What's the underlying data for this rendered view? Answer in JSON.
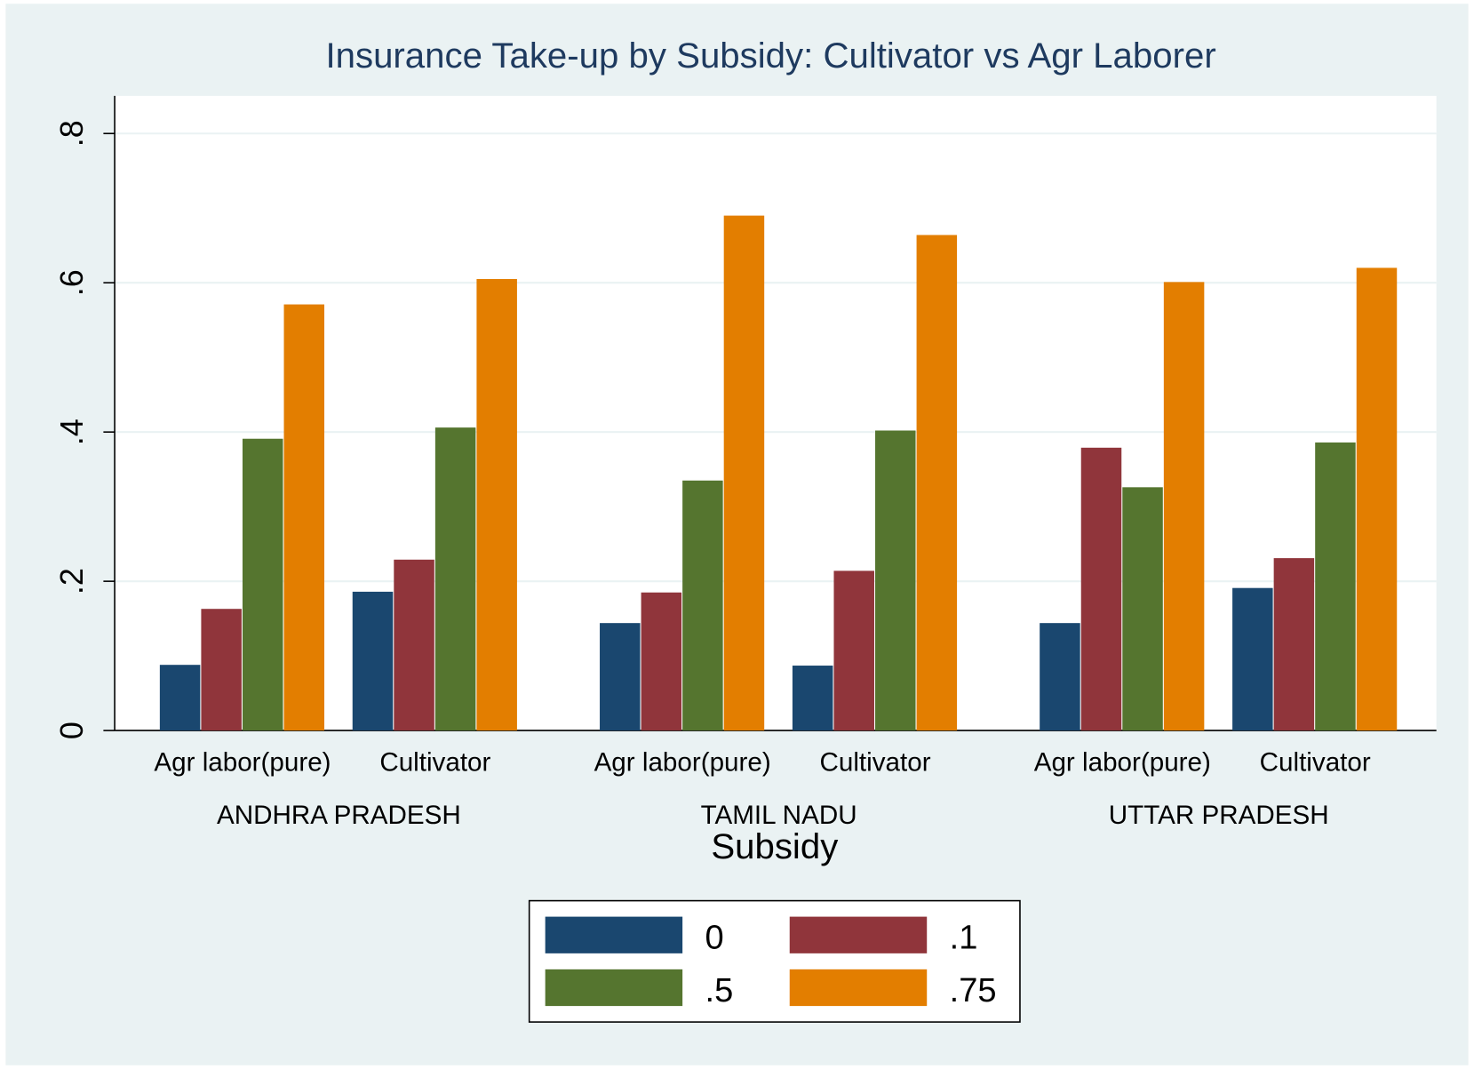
{
  "chart_data": {
    "type": "bar",
    "title": "Insurance Take-up by Subsidy: Cultivator vs Agr Laborer",
    "groups": [
      "ANDHRA PRADESH",
      "TAMIL NADU",
      "UTTAR PRADESH"
    ],
    "categories": [
      "Agr labor(pure)",
      "Cultivator",
      "Agr labor(pure)",
      "Cultivator",
      "Agr labor(pure)",
      "Cultivator"
    ],
    "legend_title": "Subsidy",
    "series": [
      {
        "name": "0",
        "color": "#1a476f",
        "values": [
          0.088,
          0.186,
          0.144,
          0.087,
          0.144,
          0.191
        ]
      },
      {
        "name": ".1",
        "color": "#90353b",
        "values": [
          0.163,
          0.229,
          0.185,
          0.214,
          0.379,
          0.231
        ]
      },
      {
        "name": ".5",
        "color": "#55752f",
        "values": [
          0.391,
          0.406,
          0.335,
          0.402,
          0.326,
          0.386
        ]
      },
      {
        "name": ".75",
        "color": "#e37e00",
        "values": [
          0.571,
          0.605,
          0.69,
          0.664,
          0.601,
          0.62
        ]
      }
    ],
    "ylim": [
      0,
      0.8
    ],
    "yticks": [
      0,
      {
        "value": 0.2,
        "label": ".2"
      },
      {
        "value": 0.4,
        "label": ".4"
      },
      {
        "value": 0.6,
        "label": ".6"
      },
      {
        "value": 0.8,
        "label": ".8"
      }
    ],
    "grid": true
  }
}
